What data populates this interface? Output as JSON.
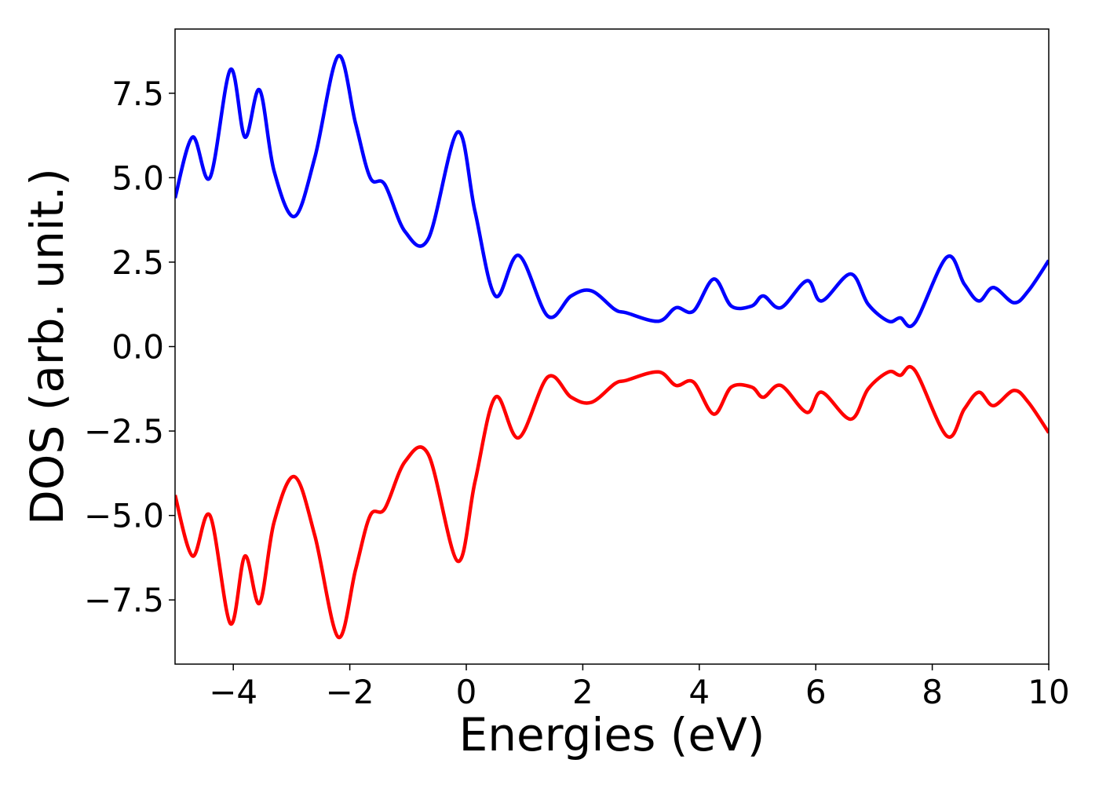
{
  "chart_data": {
    "type": "line",
    "xlabel": "Energies (eV)",
    "ylabel": "DOS (arb. unit.)",
    "xlim": [
      -5,
      10
    ],
    "ylim": [
      -9.4,
      9.4
    ],
    "xticks": [
      -4,
      -2,
      0,
      2,
      4,
      6,
      8,
      10
    ],
    "xtick_labels": [
      "−4",
      "−2",
      "0",
      "2",
      "4",
      "6",
      "8",
      "10"
    ],
    "yticks": [
      -7.5,
      -5.0,
      -2.5,
      0.0,
      2.5,
      5.0,
      7.5
    ],
    "ytick_labels": [
      "−7.5",
      "−5.0",
      "−2.5",
      "0.0",
      "2.5",
      "5.0",
      "7.5"
    ],
    "grid": false,
    "series": [
      {
        "color": "#0000ff",
        "x": [
          -5.0,
          -4.7,
          -4.4,
          -4.05,
          -3.8,
          -3.55,
          -3.3,
          -2.95,
          -2.6,
          -2.2,
          -1.9,
          -1.65,
          -1.4,
          -1.05,
          -0.65,
          -0.15,
          0.15,
          0.5,
          0.9,
          1.4,
          1.8,
          2.15,
          2.55,
          2.75,
          3.3,
          3.6,
          3.9,
          4.25,
          4.55,
          4.9,
          5.1,
          5.4,
          5.85,
          6.1,
          6.6,
          6.9,
          7.25,
          7.45,
          7.7,
          8.25,
          8.55,
          8.8,
          9.05,
          9.4,
          9.65,
          10.0
        ],
        "y": [
          4.4,
          6.2,
          5.0,
          8.2,
          6.2,
          7.6,
          5.2,
          3.85,
          5.6,
          8.6,
          6.6,
          5.0,
          4.8,
          3.4,
          3.2,
          6.35,
          4.0,
          1.5,
          2.7,
          0.9,
          1.5,
          1.65,
          1.1,
          1.0,
          0.75,
          1.15,
          1.05,
          2.0,
          1.2,
          1.2,
          1.5,
          1.15,
          1.95,
          1.35,
          2.15,
          1.25,
          0.75,
          0.85,
          0.7,
          2.65,
          1.85,
          1.35,
          1.75,
          1.3,
          1.65,
          2.55
        ]
      },
      {
        "color": "#ff0000",
        "x": [
          -5.0,
          -4.7,
          -4.4,
          -4.05,
          -3.8,
          -3.55,
          -3.3,
          -2.95,
          -2.6,
          -2.2,
          -1.9,
          -1.65,
          -1.4,
          -1.05,
          -0.65,
          -0.15,
          0.15,
          0.5,
          0.9,
          1.4,
          1.8,
          2.15,
          2.55,
          2.75,
          3.3,
          3.6,
          3.9,
          4.25,
          4.55,
          4.9,
          5.1,
          5.4,
          5.85,
          6.1,
          6.6,
          6.9,
          7.25,
          7.45,
          7.7,
          8.25,
          8.55,
          8.8,
          9.05,
          9.4,
          9.65,
          10.0
        ],
        "y": [
          -4.4,
          -6.2,
          -5.0,
          -8.2,
          -6.2,
          -7.6,
          -5.2,
          -3.85,
          -5.6,
          -8.6,
          -6.6,
          -5.0,
          -4.8,
          -3.4,
          -3.2,
          -6.35,
          -4.0,
          -1.5,
          -2.7,
          -0.9,
          -1.5,
          -1.65,
          -1.1,
          -1.0,
          -0.75,
          -1.15,
          -1.05,
          -2.0,
          -1.2,
          -1.2,
          -1.5,
          -1.15,
          -1.95,
          -1.35,
          -2.15,
          -1.25,
          -0.75,
          -0.85,
          -0.7,
          -2.65,
          -1.85,
          -1.35,
          -1.75,
          -1.3,
          -1.65,
          -2.55
        ]
      }
    ]
  }
}
